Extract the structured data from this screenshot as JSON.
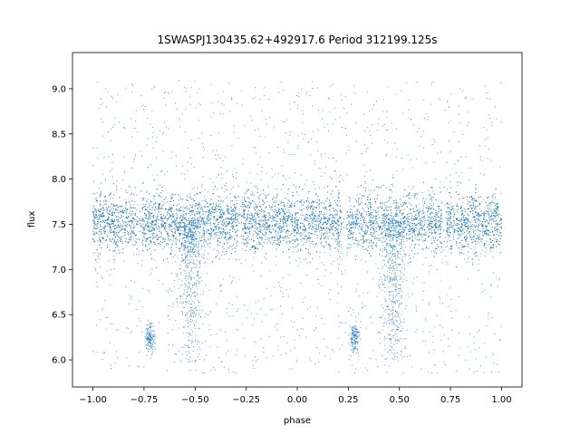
{
  "chart_data": {
    "type": "scatter",
    "title": "1SWASPJ130435.62+492917.6 Period 312199.125s",
    "xlabel": "phase",
    "ylabel": "flux",
    "xlim": [
      -1.1,
      1.1
    ],
    "ylim": [
      5.7,
      9.4
    ],
    "xticks": [
      -1.0,
      -0.75,
      -0.5,
      -0.25,
      0.0,
      0.25,
      0.5,
      0.75,
      1.0
    ],
    "xtick_labels": [
      "−1.00",
      "−0.75",
      "−0.50",
      "−0.25",
      "0.00",
      "0.25",
      "0.50",
      "0.75",
      "1.00"
    ],
    "yticks": [
      6.0,
      6.5,
      7.0,
      7.5,
      8.0,
      8.5,
      9.0
    ],
    "ytick_labels": [
      "6.0",
      "6.5",
      "7.0",
      "7.5",
      "8.0",
      "8.5",
      "9.0"
    ],
    "grid": false,
    "marker_color": "#1f77b4",
    "description": "Phase-folded light curve repeated over two cycles: dense band of points at flux about 7.5 (spread roughly 7.2-7.8), sparse scatter between 5.85 and 9.1, eclipse-like clumps near flux 6.25 at phase about -0.72 and 0.28, data gaps near phases -0.77, -0.28, 0.23, 0.72.",
    "band_center": 7.52,
    "band_spread": 0.16,
    "clumps": [
      {
        "phase": -0.72,
        "flux": 6.25
      },
      {
        "phase": 0.28,
        "flux": 6.25
      }
    ],
    "gaps": [
      -0.77,
      -0.28,
      0.23,
      0.72
    ]
  }
}
